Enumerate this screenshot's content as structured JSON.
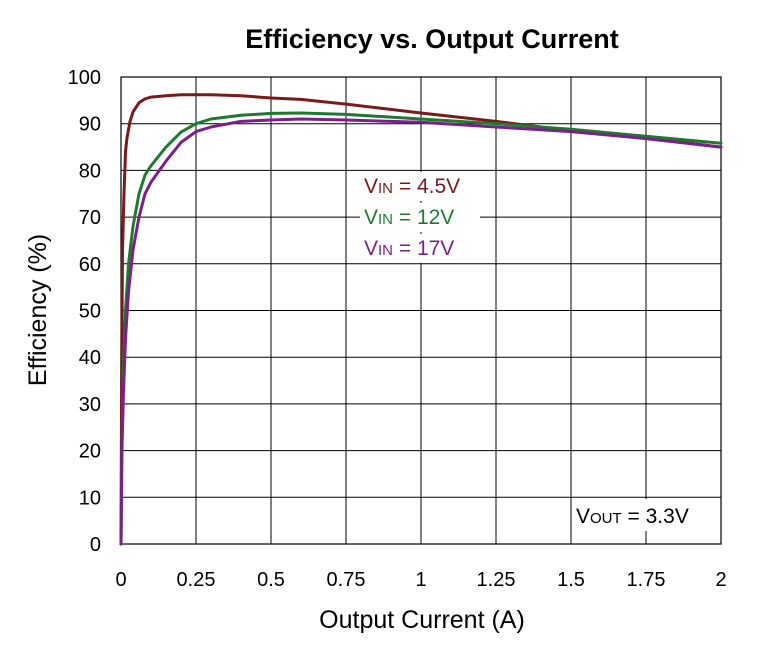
{
  "chart_data": {
    "type": "line",
    "title": "Efficiency vs. Output Current",
    "xlabel": "Output Current (A)",
    "ylabel": "Efficiency (%)",
    "xlim": [
      0,
      2
    ],
    "ylim": [
      0,
      100
    ],
    "x_ticks": [
      0,
      0.25,
      0.5,
      0.75,
      1,
      1.25,
      1.5,
      1.75,
      2
    ],
    "x_tick_labels": [
      "0",
      "0.25",
      "0.5",
      "0.75",
      "1",
      "1.25",
      "1.5",
      "1.75",
      "2"
    ],
    "y_ticks": [
      0,
      10,
      20,
      30,
      40,
      50,
      60,
      70,
      80,
      90,
      100
    ],
    "y_tick_labels": [
      "0",
      "10",
      "20",
      "30",
      "40",
      "50",
      "60",
      "70",
      "80",
      "90",
      "100"
    ],
    "grid": true,
    "legend_position": "center",
    "annotation": {
      "main": "V",
      "sub": "OUT",
      "rest": " = 3.3V"
    },
    "series": [
      {
        "name": "VIN = 4.5V",
        "legend_main": "V",
        "legend_sub": "IN",
        "legend_rest": " = 4.5V",
        "color": "#7b1a1a",
        "x": [
          0,
          0.002,
          0.005,
          0.01,
          0.015,
          0.02,
          0.03,
          0.04,
          0.06,
          0.08,
          0.1,
          0.15,
          0.2,
          0.3,
          0.4,
          0.5,
          0.6,
          0.75,
          1,
          1.25,
          1.5,
          1.75,
          2
        ],
        "y": [
          0,
          35,
          63,
          75,
          84,
          87,
          90.5,
          92.5,
          94.5,
          95.3,
          95.7,
          96,
          96.2,
          96.2,
          96,
          95.5,
          95.2,
          94.2,
          92.3,
          90.5,
          88.5,
          87,
          85
        ]
      },
      {
        "name": "VIN = 12V",
        "legend_main": "V",
        "legend_sub": "IN",
        "legend_rest": " = 12V",
        "color": "#1e7b2e",
        "x": [
          0,
          0.003,
          0.008,
          0.015,
          0.025,
          0.04,
          0.06,
          0.08,
          0.1,
          0.15,
          0.2,
          0.25,
          0.3,
          0.4,
          0.5,
          0.6,
          0.75,
          1,
          1.25,
          1.5,
          1.75,
          2
        ],
        "y": [
          0,
          21,
          38,
          50,
          60,
          68,
          75,
          79,
          81,
          85,
          88.2,
          90,
          91,
          91.8,
          92.2,
          92.3,
          92,
          91,
          90,
          88.8,
          87.3,
          85.8
        ]
      },
      {
        "name": "VIN = 17V",
        "legend_main": "V",
        "legend_sub": "IN",
        "legend_rest": " = 17V",
        "color": "#7a1f8c",
        "x": [
          0,
          0.003,
          0.008,
          0.015,
          0.025,
          0.04,
          0.06,
          0.08,
          0.1,
          0.15,
          0.2,
          0.25,
          0.3,
          0.4,
          0.5,
          0.6,
          0.75,
          1,
          1.25,
          1.5,
          1.75,
          2
        ],
        "y": [
          0,
          20,
          32,
          44,
          54,
          63,
          70,
          75,
          77.5,
          82,
          86,
          88.3,
          89.3,
          90.5,
          90.8,
          91,
          90.8,
          90.3,
          89.3,
          88.3,
          86.8,
          85
        ]
      }
    ]
  }
}
